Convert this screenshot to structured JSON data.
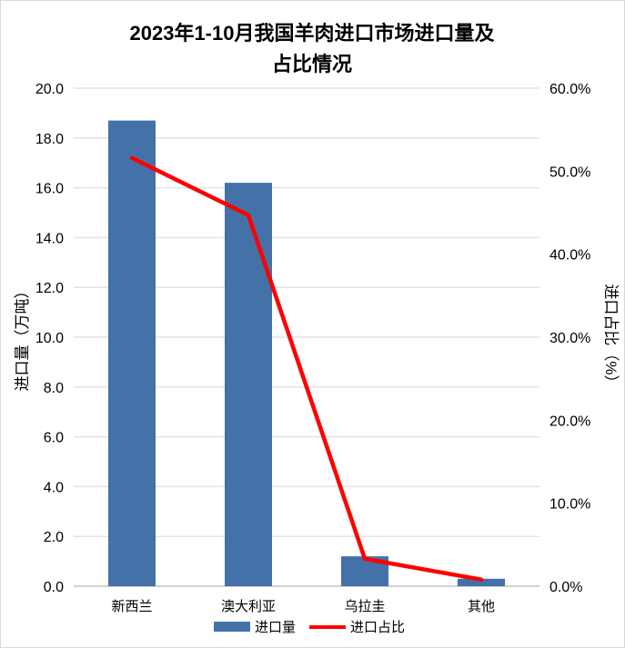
{
  "chart_data": {
    "type": "bar+line",
    "title_line1": "2023年1-10月我国羊肉进口市场进口量及",
    "title_line2": "占比情况",
    "categories": [
      "新西兰",
      "澳大利亚",
      "乌拉圭",
      "其他"
    ],
    "series": [
      {
        "name": "进口量",
        "type": "bar",
        "axis": "left",
        "color": "#4472a8",
        "values": [
          18.7,
          16.2,
          1.2,
          0.3
        ]
      },
      {
        "name": "进口占比",
        "type": "line",
        "axis": "right",
        "color": "#ff0000",
        "values": [
          51.6,
          44.7,
          3.3,
          0.8
        ]
      }
    ],
    "ylabel": "进口量（万吨）",
    "y2label": "进口占比（%）",
    "ylim": [
      0,
      20
    ],
    "y2lim": [
      0,
      60
    ],
    "yticks": [
      "0.0",
      "2.0",
      "4.0",
      "6.0",
      "8.0",
      "10.0",
      "12.0",
      "14.0",
      "16.0",
      "18.0",
      "20.0"
    ],
    "y2ticks": [
      "0.0%",
      "10.0%",
      "20.0%",
      "30.0%",
      "40.0%",
      "50.0%",
      "60.0%"
    ],
    "grid": true,
    "legend": "bottom"
  }
}
